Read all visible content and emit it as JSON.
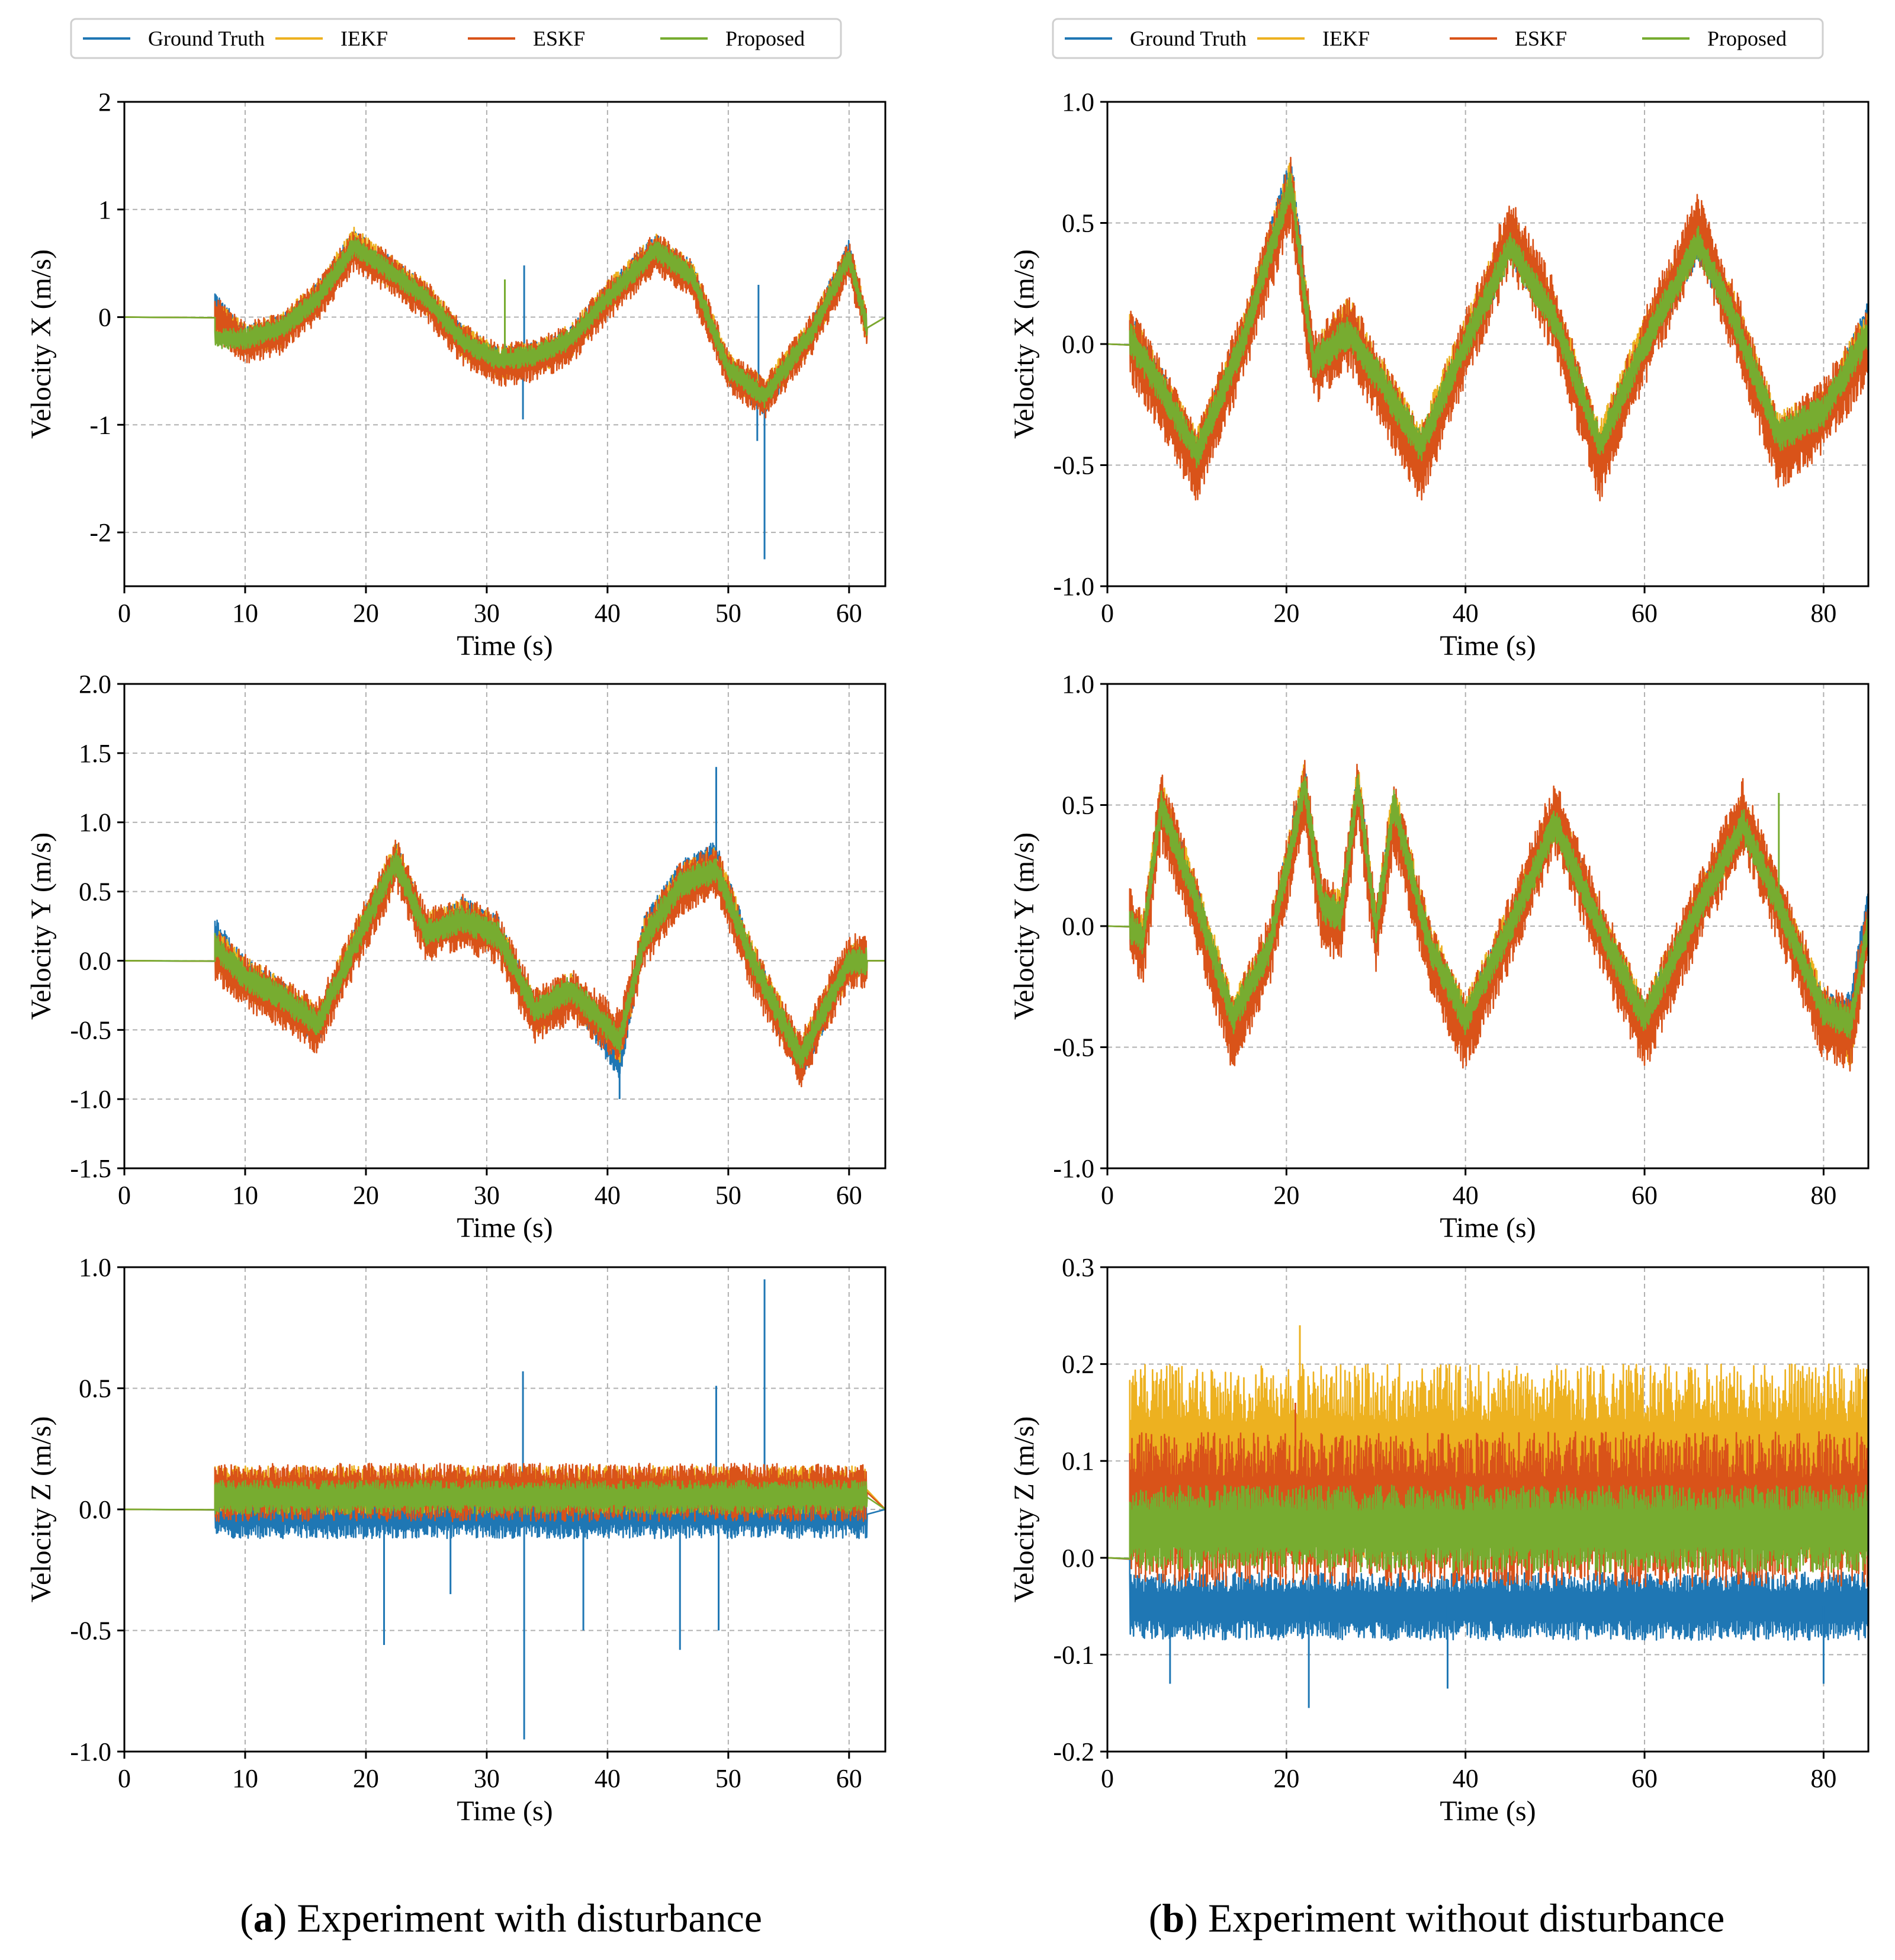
{
  "legend": {
    "entries": [
      "Ground Truth",
      "IEKF",
      "ESKF",
      "Proposed"
    ],
    "colors": [
      "#1f77b4",
      "#edb120",
      "#d95319",
      "#77ac30"
    ]
  },
  "captions": [
    {
      "letter": "a",
      "text": "Experiment with disturbance"
    },
    {
      "letter": "b",
      "text": "Experiment without disturbance"
    }
  ],
  "chart_data": [
    {
      "type": "line",
      "panel": "a-x",
      "title": "",
      "xlabel": "Time (s)",
      "ylabel": "Velocity X (m/s)",
      "xlim": [
        0,
        63
      ],
      "ylim": [
        -2.5,
        2
      ],
      "xticks": [
        0,
        10,
        20,
        30,
        40,
        50,
        60
      ],
      "yticks": [
        -2,
        -1,
        0,
        1,
        2
      ],
      "ytick_labels": [
        "-2",
        "-1",
        "0",
        "1",
        "2"
      ],
      "legend_position": "top",
      "start": 7.5,
      "end": 61.5,
      "x": [
        7.5,
        10,
        13,
        16,
        19,
        22,
        25,
        28,
        31,
        34,
        37,
        40,
        44,
        47,
        50,
        53,
        57,
        60,
        61.5
      ],
      "series": [
        {
          "name": "Ground Truth",
          "values": [
            0.1,
            -0.2,
            -0.1,
            0.2,
            0.7,
            0.45,
            0.2,
            -0.2,
            -0.4,
            -0.35,
            -0.2,
            0.2,
            0.65,
            0.4,
            -0.5,
            -0.8,
            -0.1,
            0.6,
            -0.1
          ],
          "noise": 0.12,
          "spikes": [
            {
              "x": 33,
              "y": -0.95
            },
            {
              "x": 33.1,
              "y": 0.48
            },
            {
              "x": 52.5,
              "y": 0.3
            },
            {
              "x": 53,
              "y": -2.25
            },
            {
              "x": 52.4,
              "y": -1.15
            }
          ]
        },
        {
          "name": "IEKF",
          "values": [
            0.0,
            -0.22,
            -0.12,
            0.18,
            0.68,
            0.42,
            0.18,
            -0.22,
            -0.42,
            -0.38,
            -0.22,
            0.18,
            0.62,
            0.38,
            -0.48,
            -0.72,
            -0.12,
            0.55,
            -0.1
          ],
          "noise": 0.16,
          "spikes": []
        },
        {
          "name": "ESKF",
          "values": [
            0.0,
            -0.25,
            -0.15,
            0.15,
            0.62,
            0.4,
            0.15,
            -0.25,
            -0.45,
            -0.4,
            -0.25,
            0.15,
            0.6,
            0.35,
            -0.5,
            -0.75,
            -0.15,
            0.52,
            -0.1
          ],
          "noise": 0.2,
          "spikes": []
        },
        {
          "name": "Proposed",
          "values": [
            -0.2,
            -0.2,
            -0.1,
            0.17,
            0.66,
            0.43,
            0.17,
            -0.22,
            -0.4,
            -0.36,
            -0.2,
            0.18,
            0.62,
            0.38,
            -0.48,
            -0.74,
            -0.12,
            0.56,
            -0.1
          ],
          "noise": 0.1,
          "spikes": [
            {
              "x": 31.5,
              "y": 0.35
            }
          ]
        }
      ]
    },
    {
      "type": "line",
      "panel": "b-x",
      "title": "",
      "xlabel": "Time (s)",
      "ylabel": "Velocity X (m/s)",
      "xlim": [
        0,
        85
      ],
      "ylim": [
        -1.0,
        1.0
      ],
      "xticks": [
        0,
        20,
        40,
        60,
        80
      ],
      "yticks": [
        -1.0,
        -0.5,
        0.0,
        0.5,
        1.0
      ],
      "ytick_labels": [
        "-1.0",
        "-0.5",
        "0.0",
        "0.5",
        "1.0"
      ],
      "legend_position": "top",
      "start": 2.5,
      "end": 85,
      "x": [
        2.5,
        5,
        10,
        15,
        20.5,
        23,
        27,
        30,
        35,
        40,
        45,
        50,
        55,
        60,
        66,
        70,
        75,
        80,
        85
      ],
      "series": [
        {
          "name": "Ground Truth",
          "values": [
            0.05,
            -0.1,
            -0.45,
            0.0,
            0.72,
            -0.1,
            0.05,
            -0.15,
            -0.45,
            0.0,
            0.42,
            0.1,
            -0.45,
            0.0,
            0.42,
            0.1,
            -0.4,
            -0.3,
            0.1
          ],
          "noise": 0.08,
          "spikes": []
        },
        {
          "name": "IEKF",
          "values": [
            0.05,
            -0.12,
            -0.45,
            0.0,
            0.68,
            -0.08,
            0.1,
            -0.12,
            -0.42,
            0.02,
            0.45,
            0.12,
            -0.42,
            0.02,
            0.45,
            0.12,
            -0.38,
            -0.28,
            0.05
          ],
          "noise": 0.1,
          "spikes": []
        },
        {
          "name": "ESKF",
          "values": [
            0.0,
            -0.15,
            -0.5,
            -0.02,
            0.62,
            -0.1,
            0.05,
            -0.15,
            -0.5,
            -0.02,
            0.45,
            0.1,
            -0.5,
            -0.02,
            0.48,
            0.1,
            -0.45,
            -0.3,
            0.0
          ],
          "noise": 0.16,
          "spikes": []
        },
        {
          "name": "Proposed",
          "values": [
            0.02,
            -0.12,
            -0.45,
            0.0,
            0.66,
            -0.08,
            0.05,
            -0.12,
            -0.42,
            0.0,
            0.4,
            0.1,
            -0.42,
            0.0,
            0.42,
            0.1,
            -0.38,
            -0.28,
            0.05
          ],
          "noise": 0.07,
          "spikes": []
        }
      ]
    },
    {
      "type": "line",
      "panel": "a-y",
      "title": "",
      "xlabel": "Time (s)",
      "ylabel": "Velocity Y (m/s)",
      "xlim": [
        0,
        63
      ],
      "ylim": [
        -1.5,
        2.0
      ],
      "xticks": [
        0,
        10,
        20,
        30,
        40,
        50,
        60
      ],
      "yticks": [
        -1.5,
        -1.0,
        -0.5,
        0.0,
        0.5,
        1.0,
        1.5,
        2.0
      ],
      "ytick_labels": [
        "-1.5",
        "-1.0",
        "-0.5",
        "0.0",
        "0.5",
        "1.0",
        "1.5",
        "2.0"
      ],
      "legend_position": "top",
      "start": 7.5,
      "end": 61.5,
      "x": [
        7.5,
        10,
        13,
        16,
        19,
        22.5,
        25,
        28,
        31,
        34,
        37,
        41,
        43,
        46,
        49,
        52,
        56,
        60,
        61.5
      ],
      "series": [
        {
          "name": "Ground Truth",
          "values": [
            0.2,
            -0.1,
            -0.25,
            -0.5,
            0.1,
            0.75,
            0.2,
            0.35,
            0.2,
            -0.4,
            -0.2,
            -0.75,
            0.2,
            0.6,
            0.75,
            0.0,
            -0.75,
            0.0,
            0.0
          ],
          "noise": 0.12,
          "spikes": [
            {
              "x": 49,
              "y": 1.4
            },
            {
              "x": 41,
              "y": -1.0
            }
          ]
        },
        {
          "name": "IEKF",
          "values": [
            0.1,
            -0.12,
            -0.27,
            -0.45,
            0.1,
            0.72,
            0.2,
            0.3,
            0.18,
            -0.38,
            -0.22,
            -0.6,
            0.15,
            0.55,
            0.68,
            0.0,
            -0.7,
            0.0,
            0.0
          ],
          "noise": 0.15,
          "spikes": []
        },
        {
          "name": "ESKF",
          "values": [
            0.05,
            -0.15,
            -0.3,
            -0.48,
            0.08,
            0.7,
            0.18,
            0.28,
            0.15,
            -0.4,
            -0.25,
            -0.55,
            0.12,
            0.52,
            0.65,
            -0.05,
            -0.72,
            0.0,
            0.0
          ],
          "noise": 0.2,
          "spikes": []
        },
        {
          "name": "Proposed",
          "values": [
            0.1,
            -0.12,
            -0.26,
            -0.46,
            0.1,
            0.72,
            0.2,
            0.3,
            0.18,
            -0.36,
            -0.2,
            -0.58,
            0.15,
            0.55,
            0.66,
            0.0,
            -0.7,
            0.0,
            0.0
          ],
          "noise": 0.1,
          "spikes": []
        }
      ]
    },
    {
      "type": "line",
      "panel": "b-y",
      "title": "",
      "xlabel": "Time (s)",
      "ylabel": "Velocity Y (m/s)",
      "xlim": [
        0,
        85
      ],
      "ylim": [
        -1.0,
        1.0
      ],
      "xticks": [
        0,
        20,
        40,
        60,
        80
      ],
      "yticks": [
        -1.0,
        -0.5,
        0.0,
        0.5,
        1.0
      ],
      "ytick_labels": [
        "-1.0",
        "-0.5",
        "0.0",
        "0.5",
        "1.0"
      ],
      "legend_position": "top",
      "start": 2.5,
      "end": 85,
      "x": [
        2.5,
        4,
        6,
        10,
        14,
        18,
        22,
        24,
        26,
        28,
        30,
        32,
        36,
        40,
        45,
        50,
        55,
        60,
        65,
        71,
        76,
        80,
        83,
        85
      ],
      "series": [
        {
          "name": "Ground Truth",
          "values": [
            0.0,
            -0.1,
            0.5,
            0.1,
            -0.4,
            -0.1,
            0.6,
            0.05,
            0.0,
            0.6,
            -0.05,
            0.5,
            -0.1,
            -0.4,
            0.0,
            0.45,
            0.0,
            -0.4,
            0.0,
            0.45,
            0.0,
            -0.35,
            -0.35,
            0.1
          ],
          "noise": 0.08,
          "spikes": []
        },
        {
          "name": "IEKF",
          "values": [
            0.0,
            -0.05,
            0.52,
            0.1,
            -0.38,
            -0.1,
            0.58,
            0.08,
            0.05,
            0.58,
            0.0,
            0.5,
            -0.08,
            -0.38,
            0.0,
            0.45,
            0.0,
            -0.38,
            0.0,
            0.46,
            0.0,
            -0.35,
            -0.5,
            0.0
          ],
          "noise": 0.1,
          "spikes": []
        },
        {
          "name": "ESKF",
          "values": [
            0.0,
            -0.1,
            0.48,
            0.05,
            -0.45,
            -0.12,
            0.55,
            0.05,
            0.0,
            0.55,
            -0.05,
            0.45,
            -0.12,
            -0.45,
            -0.02,
            0.45,
            -0.02,
            -0.45,
            -0.02,
            0.45,
            -0.02,
            -0.4,
            -0.45,
            0.0
          ],
          "noise": 0.16,
          "spikes": []
        },
        {
          "name": "Proposed",
          "values": [
            0.0,
            -0.05,
            0.5,
            0.1,
            -0.38,
            -0.1,
            0.58,
            0.08,
            0.05,
            0.58,
            0.0,
            0.5,
            -0.08,
            -0.38,
            0.0,
            0.42,
            0.0,
            -0.38,
            0.0,
            0.42,
            0.0,
            -0.35,
            -0.4,
            0.0
          ],
          "noise": 0.07,
          "spikes": [
            {
              "x": 75,
              "y": 0.55
            }
          ]
        }
      ]
    },
    {
      "type": "line",
      "panel": "a-z",
      "title": "",
      "xlabel": "Time (s)",
      "ylabel": "Velocity Z (m/s)",
      "xlim": [
        0,
        63
      ],
      "ylim": [
        -1.0,
        1.0
      ],
      "xticks": [
        0,
        10,
        20,
        30,
        40,
        50,
        60
      ],
      "yticks": [
        -1.0,
        -0.5,
        0.0,
        0.5,
        1.0
      ],
      "ytick_labels": [
        "-1.0",
        "-0.5",
        "0.0",
        "0.5",
        "1.0"
      ],
      "legend_position": "top",
      "start": 7.5,
      "end": 61.5,
      "x": [
        7.5,
        61.5
      ],
      "series": [
        {
          "name": "Ground Truth",
          "values": [
            -0.02,
            -0.02
          ],
          "noise": 0.1,
          "spikes": [
            {
              "x": 21.5,
              "y": -0.56
            },
            {
              "x": 33,
              "y": 0.57
            },
            {
              "x": 33.1,
              "y": -0.95
            },
            {
              "x": 38,
              "y": -0.5
            },
            {
              "x": 46,
              "y": -0.58
            },
            {
              "x": 49,
              "y": 0.51
            },
            {
              "x": 49.2,
              "y": -0.5
            },
            {
              "x": 53,
              "y": 0.95
            },
            {
              "x": 27,
              "y": -0.35
            }
          ]
        },
        {
          "name": "IEKF",
          "values": [
            0.08,
            0.08
          ],
          "noise": 0.1,
          "spikes": []
        },
        {
          "name": "ESKF",
          "values": [
            0.07,
            0.07
          ],
          "noise": 0.12,
          "spikes": []
        },
        {
          "name": "Proposed",
          "values": [
            0.05,
            0.05
          ],
          "noise": 0.07,
          "spikes": []
        }
      ]
    },
    {
      "type": "line",
      "panel": "b-z",
      "title": "",
      "xlabel": "Time (s)",
      "ylabel": "Velocity Z (m/s)",
      "xlim": [
        0,
        85
      ],
      "ylim": [
        -0.2,
        0.3
      ],
      "xticks": [
        0,
        20,
        40,
        60,
        80
      ],
      "yticks": [
        -0.2,
        -0.1,
        0.0,
        0.1,
        0.2,
        0.3
      ],
      "ytick_labels": [
        "-0.2",
        "-0.1",
        "0.0",
        "0.1",
        "0.2",
        "0.3"
      ],
      "legend_position": "top",
      "start": 2.5,
      "end": 85,
      "x": [
        2.5,
        85
      ],
      "series": [
        {
          "name": "Ground Truth",
          "values": [
            -0.05,
            -0.05
          ],
          "noise": 0.035,
          "spikes": [
            {
              "x": 7,
              "y": -0.13
            },
            {
              "x": 22.5,
              "y": -0.155
            },
            {
              "x": 38,
              "y": -0.135
            },
            {
              "x": 80,
              "y": -0.13
            }
          ]
        },
        {
          "name": "IEKF",
          "values": [
            0.1,
            0.1
          ],
          "noise": 0.1,
          "spikes": [
            {
              "x": 21.5,
              "y": 0.24
            }
          ]
        },
        {
          "name": "ESKF",
          "values": [
            0.05,
            0.05
          ],
          "noise": 0.08,
          "spikes": [
            {
              "x": 21,
              "y": 0.16
            }
          ]
        },
        {
          "name": "Proposed",
          "values": [
            0.03,
            0.03
          ],
          "noise": 0.045,
          "spikes": []
        }
      ]
    }
  ]
}
